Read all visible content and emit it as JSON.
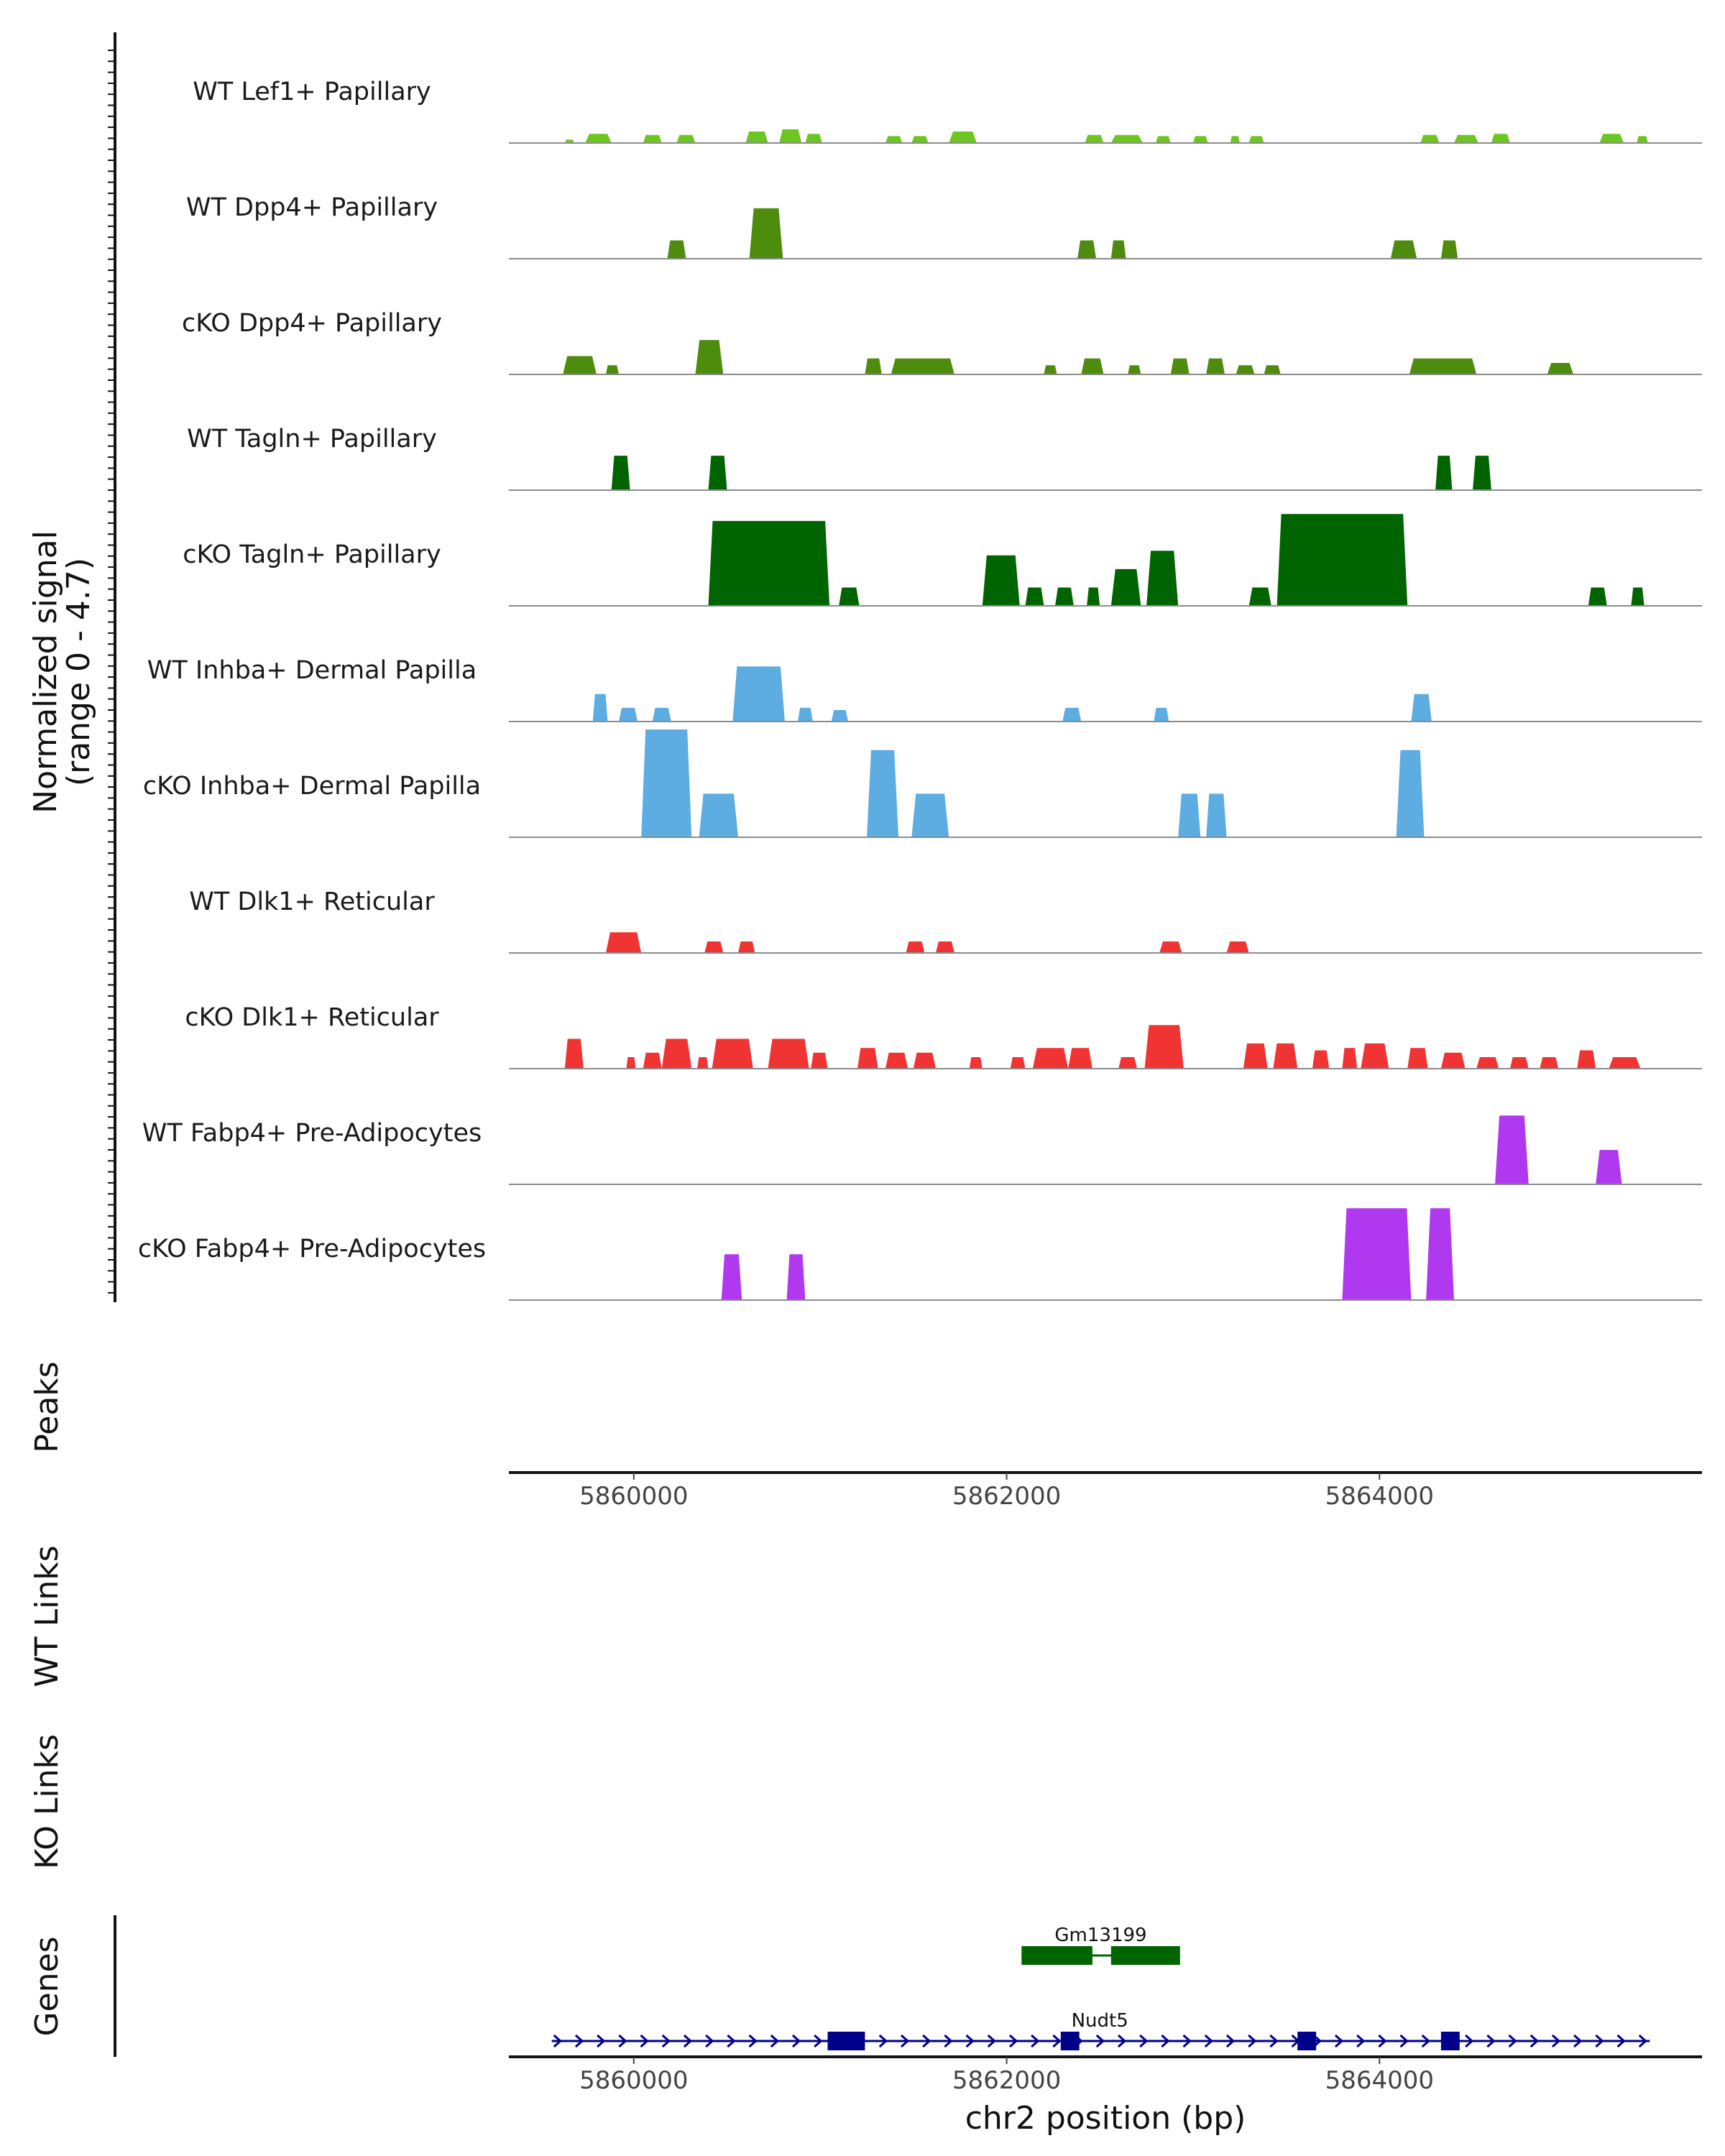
{
  "chart_data": {
    "type": "genome-coverage-tracks",
    "signal_axis_title_line1": "Normalized signal",
    "signal_axis_title_line2": "(range 0 - 4.7)",
    "signal_range": [
      0,
      4.7
    ],
    "peaks_label": "Peaks",
    "wt_links_label": "WT Links",
    "ko_links_label": "KO Links",
    "genes_label": "Genes",
    "xlabel": "chr2 position (bp)",
    "xlim": [
      5859330,
      5865730
    ],
    "xticks": [
      5860000,
      5862000,
      5864000
    ],
    "xtick_labels": [
      "5860000",
      "5862000",
      "5864000"
    ],
    "tracks": [
      {
        "name": "WT Lef1+ Papillary",
        "color": "#6dc61f",
        "peaks": [
          [
            5859630,
            5859680,
            0.15
          ],
          [
            5859740,
            5859880,
            0.4
          ],
          [
            5860050,
            5860150,
            0.35
          ],
          [
            5860230,
            5860330,
            0.35
          ],
          [
            5860600,
            5860720,
            0.5
          ],
          [
            5860780,
            5860900,
            0.6
          ],
          [
            5860920,
            5861010,
            0.4
          ],
          [
            5861350,
            5861440,
            0.3
          ],
          [
            5861490,
            5861580,
            0.3
          ],
          [
            5861690,
            5861840,
            0.5
          ],
          [
            5862420,
            5862520,
            0.35
          ],
          [
            5862560,
            5862730,
            0.35
          ],
          [
            5862800,
            5862880,
            0.3
          ],
          [
            5863000,
            5863080,
            0.3
          ],
          [
            5863200,
            5863250,
            0.3
          ],
          [
            5863300,
            5863380,
            0.3
          ],
          [
            5864220,
            5864320,
            0.35
          ],
          [
            5864400,
            5864530,
            0.35
          ],
          [
            5864600,
            5864700,
            0.4
          ],
          [
            5865180,
            5865310,
            0.4
          ],
          [
            5865380,
            5865440,
            0.3
          ]
        ]
      },
      {
        "name": "WT Dpp4+ Papillary",
        "color": "#4d8c0c",
        "peaks": [
          [
            5860180,
            5860280,
            0.8
          ],
          [
            5860620,
            5860800,
            2.2
          ],
          [
            5862380,
            5862480,
            0.8
          ],
          [
            5862560,
            5862640,
            0.8
          ],
          [
            5864060,
            5864200,
            0.8
          ],
          [
            5864330,
            5864420,
            0.8
          ]
        ]
      },
      {
        "name": "cKO Dpp4+ Papillary",
        "color": "#4d8c0c",
        "peaks": [
          [
            5859620,
            5859800,
            0.8
          ],
          [
            5859850,
            5859920,
            0.4
          ],
          [
            5860330,
            5860480,
            1.5
          ],
          [
            5861240,
            5861330,
            0.7
          ],
          [
            5861380,
            5861720,
            0.7
          ],
          [
            5862200,
            5862270,
            0.4
          ],
          [
            5862400,
            5862520,
            0.7
          ],
          [
            5862650,
            5862720,
            0.4
          ],
          [
            5862880,
            5862980,
            0.7
          ],
          [
            5863070,
            5863170,
            0.7
          ],
          [
            5863230,
            5863330,
            0.4
          ],
          [
            5863380,
            5863470,
            0.4
          ],
          [
            5864160,
            5864520,
            0.7
          ],
          [
            5864900,
            5865040,
            0.5
          ]
        ]
      },
      {
        "name": "WT Tagln+ Papillary",
        "color": "#006400",
        "peaks": [
          [
            5859880,
            5859980,
            1.5
          ],
          [
            5860400,
            5860500,
            1.5
          ],
          [
            5864300,
            5864390,
            1.5
          ],
          [
            5864500,
            5864600,
            1.5
          ]
        ]
      },
      {
        "name": "cKO Tagln+ Papillary",
        "color": "#006400",
        "peaks": [
          [
            5860400,
            5861050,
            3.7
          ],
          [
            5861100,
            5861210,
            0.8
          ],
          [
            5861870,
            5862070,
            2.2
          ],
          [
            5862100,
            5862200,
            0.8
          ],
          [
            5862260,
            5862360,
            0.8
          ],
          [
            5862430,
            5862500,
            0.8
          ],
          [
            5862560,
            5862720,
            1.6
          ],
          [
            5862750,
            5862920,
            2.4
          ],
          [
            5863300,
            5863420,
            0.8
          ],
          [
            5863450,
            5864150,
            4.0
          ],
          [
            5865120,
            5865220,
            0.8
          ],
          [
            5865350,
            5865420,
            0.8
          ]
        ]
      },
      {
        "name": "WT Inhba+ Dermal Papilla",
        "color": "#5dade2",
        "peaks": [
          [
            5859780,
            5859860,
            1.2
          ],
          [
            5859920,
            5860020,
            0.6
          ],
          [
            5860100,
            5860200,
            0.6
          ],
          [
            5860530,
            5860810,
            2.4
          ],
          [
            5860880,
            5860960,
            0.6
          ],
          [
            5861060,
            5861150,
            0.5
          ],
          [
            5862300,
            5862400,
            0.6
          ],
          [
            5862790,
            5862870,
            0.6
          ],
          [
            5864170,
            5864280,
            1.2
          ]
        ]
      },
      {
        "name": "cKO Inhba+ Dermal Papilla",
        "color": "#5dade2",
        "peaks": [
          [
            5860040,
            5860310,
            4.7
          ],
          [
            5860350,
            5860560,
            1.9
          ],
          [
            5861250,
            5861420,
            3.8
          ],
          [
            5861490,
            5861690,
            1.9
          ],
          [
            5862920,
            5863040,
            1.9
          ],
          [
            5863070,
            5863180,
            1.9
          ],
          [
            5864090,
            5864240,
            3.8
          ]
        ]
      },
      {
        "name": "WT Dlk1+ Reticular",
        "color": "#f03333",
        "peaks": [
          [
            5859850,
            5860040,
            0.9
          ],
          [
            5860380,
            5860480,
            0.5
          ],
          [
            5860560,
            5860650,
            0.5
          ],
          [
            5861460,
            5861560,
            0.5
          ],
          [
            5861620,
            5861720,
            0.5
          ],
          [
            5862820,
            5862940,
            0.5
          ],
          [
            5863180,
            5863300,
            0.5
          ]
        ]
      },
      {
        "name": "cKO Dlk1+ Reticular",
        "color": "#f03333",
        "peaks": [
          [
            5859630,
            5859730,
            1.3
          ],
          [
            5859960,
            5860010,
            0.5
          ],
          [
            5860050,
            5860150,
            0.7
          ],
          [
            5860150,
            5860310,
            1.3
          ],
          [
            5860340,
            5860400,
            0.5
          ],
          [
            5860420,
            5860640,
            1.3
          ],
          [
            5860720,
            5860940,
            1.3
          ],
          [
            5860950,
            5861040,
            0.7
          ],
          [
            5861200,
            5861310,
            0.9
          ],
          [
            5861350,
            5861470,
            0.7
          ],
          [
            5861500,
            5861620,
            0.7
          ],
          [
            5861800,
            5861870,
            0.5
          ],
          [
            5862020,
            5862100,
            0.5
          ],
          [
            5862140,
            5862330,
            0.9
          ],
          [
            5862330,
            5862460,
            0.9
          ],
          [
            5862600,
            5862700,
            0.5
          ],
          [
            5862740,
            5862950,
            1.9
          ],
          [
            5863270,
            5863400,
            1.1
          ],
          [
            5863430,
            5863560,
            1.1
          ],
          [
            5863640,
            5863730,
            0.8
          ],
          [
            5863800,
            5863880,
            0.9
          ],
          [
            5863900,
            5864050,
            1.1
          ],
          [
            5864150,
            5864260,
            0.9
          ],
          [
            5864330,
            5864460,
            0.7
          ],
          [
            5864520,
            5864640,
            0.5
          ],
          [
            5864700,
            5864800,
            0.5
          ],
          [
            5864860,
            5864960,
            0.5
          ],
          [
            5865060,
            5865160,
            0.8
          ],
          [
            5865230,
            5865400,
            0.5
          ]
        ]
      },
      {
        "name": "WT Fabp4+ Pre-Adipocytes",
        "color": "#b039f0",
        "peaks": [
          [
            5864620,
            5864800,
            3.0
          ],
          [
            5865160,
            5865300,
            1.5
          ]
        ]
      },
      {
        "name": "cKO Fabp4+ Pre-Adipocytes",
        "color": "#b039f0",
        "peaks": [
          [
            5860470,
            5860580,
            2.0
          ],
          [
            5860820,
            5860920,
            2.0
          ],
          [
            5863800,
            5864170,
            4.0
          ],
          [
            5864250,
            5864400,
            4.0
          ]
        ]
      }
    ],
    "genes": [
      {
        "name": "Gm13199",
        "color": "#006400",
        "strand": "+",
        "start": 5862080,
        "end": 5862930,
        "exons": [
          [
            5862080,
            5862460
          ],
          [
            5862560,
            5862930
          ]
        ]
      },
      {
        "name": "Nudt5",
        "color": "#00008b",
        "strand": "+",
        "start": 5859560,
        "end": 5865450,
        "exons": [
          [
            5861040,
            5861240
          ],
          [
            5862290,
            5862390
          ],
          [
            5863560,
            5863660
          ],
          [
            5864330,
            5864430
          ]
        ]
      }
    ]
  }
}
